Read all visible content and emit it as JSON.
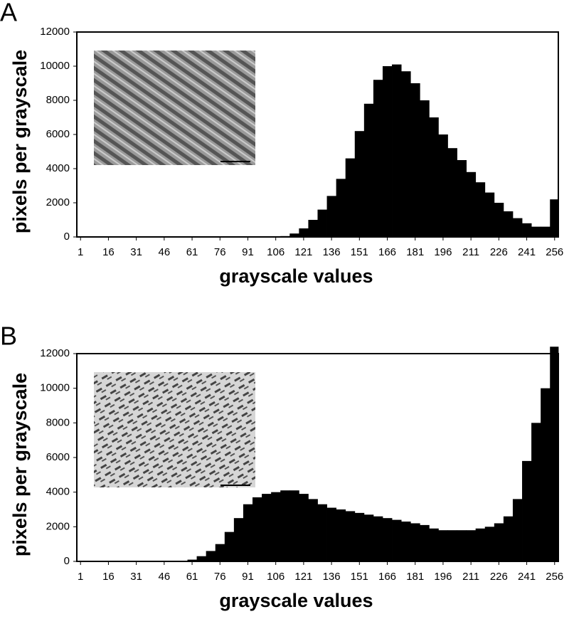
{
  "chart_data": [
    {
      "type": "histogram",
      "panel": "A",
      "xlabel": "grayscale values",
      "ylabel": "pixels per grayscale",
      "color": "#000000",
      "x": [
        1,
        6,
        11,
        16,
        21,
        26,
        31,
        36,
        41,
        46,
        51,
        56,
        61,
        66,
        71,
        76,
        81,
        86,
        91,
        96,
        101,
        106,
        111,
        116,
        121,
        126,
        131,
        136,
        141,
        146,
        151,
        156,
        161,
        166,
        171,
        176,
        181,
        186,
        191,
        196,
        201,
        206,
        211,
        216,
        221,
        226,
        231,
        236,
        241,
        246,
        251,
        256
      ],
      "values": [
        0,
        0,
        0,
        0,
        0,
        0,
        0,
        0,
        0,
        0,
        0,
        0,
        0,
        0,
        0,
        0,
        0,
        0,
        0,
        0,
        0,
        0,
        50,
        200,
        500,
        1000,
        1600,
        2400,
        3400,
        4600,
        6200,
        7800,
        9200,
        10000,
        10100,
        9700,
        9000,
        8000,
        7000,
        6000,
        5200,
        4500,
        3800,
        3200,
        2600,
        2000,
        1500,
        1100,
        800,
        600,
        600,
        2200
      ],
      "xlim": [
        -1,
        258
      ],
      "xticks": [
        1,
        16,
        31,
        46,
        61,
        76,
        91,
        106,
        121,
        136,
        151,
        166,
        181,
        196,
        211,
        226,
        241,
        256
      ],
      "ylim": [
        0,
        12000
      ],
      "yticks": [
        0,
        2000,
        4000,
        6000,
        8000,
        10000,
        12000
      ]
    },
    {
      "type": "histogram",
      "panel": "B",
      "xlabel": "grayscale values",
      "ylabel": "pixels per grayscale",
      "color": "#000000",
      "x": [
        1,
        6,
        11,
        16,
        21,
        26,
        31,
        36,
        41,
        46,
        51,
        56,
        61,
        66,
        71,
        76,
        81,
        86,
        91,
        96,
        101,
        106,
        111,
        116,
        121,
        126,
        131,
        136,
        141,
        146,
        151,
        156,
        161,
        166,
        171,
        176,
        181,
        186,
        191,
        196,
        201,
        206,
        211,
        216,
        221,
        226,
        231,
        236,
        241,
        246,
        251,
        256
      ],
      "values": [
        0,
        0,
        0,
        0,
        0,
        0,
        0,
        0,
        0,
        0,
        0,
        0,
        100,
        300,
        600,
        1000,
        1700,
        2500,
        3300,
        3700,
        3900,
        4000,
        4100,
        4100,
        3900,
        3600,
        3300,
        3100,
        3000,
        2900,
        2800,
        2700,
        2600,
        2500,
        2400,
        2300,
        2200,
        2100,
        1900,
        1800,
        1800,
        1800,
        1800,
        1900,
        2000,
        2200,
        2600,
        3600,
        5800,
        8000,
        10000,
        12400
      ],
      "xlim": [
        -1,
        258
      ],
      "xticks": [
        1,
        16,
        31,
        46,
        61,
        76,
        91,
        106,
        121,
        136,
        151,
        166,
        181,
        196,
        211,
        226,
        241,
        256
      ],
      "ylim": [
        0,
        12000
      ],
      "yticks": [
        0,
        2000,
        4000,
        6000,
        8000,
        10000,
        12000
      ]
    }
  ]
}
